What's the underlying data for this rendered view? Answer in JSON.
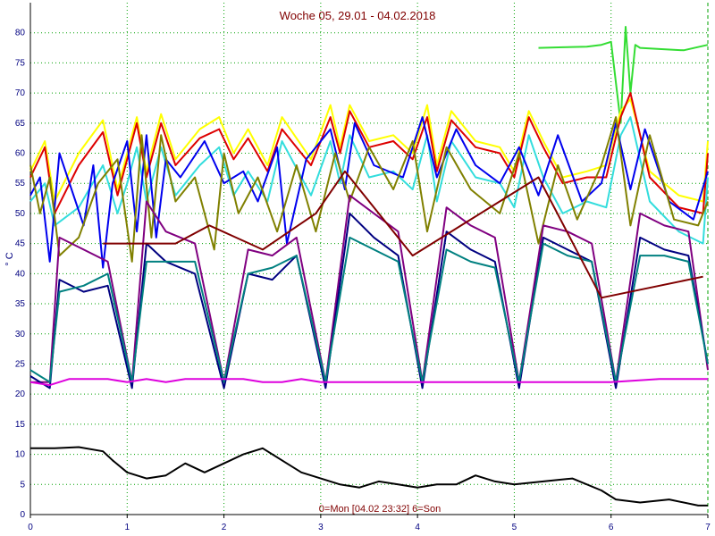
{
  "chart_data": {
    "type": "line",
    "title": "Woche 05, 29.01 - 04.02.2018",
    "xlabel": "0=Mon [04.02 23:32] 6=Son",
    "ylabel": "° C",
    "xlim": [
      0,
      7
    ],
    "ylim": [
      0,
      85
    ],
    "xticks": [
      0,
      1,
      2,
      3,
      4,
      5,
      6,
      7
    ],
    "yticks": [
      0,
      5,
      10,
      15,
      20,
      25,
      30,
      35,
      40,
      45,
      50,
      55,
      60,
      65,
      70,
      75,
      80
    ],
    "grid": true,
    "series": [
      {
        "color": "#33dd33",
        "x": [
          5.25,
          5.5,
          5.75,
          5.9,
          6.0,
          6.1,
          6.15,
          6.2,
          6.25,
          6.3,
          6.5,
          6.75,
          7.0
        ],
        "y": [
          77.5,
          77.6,
          77.7,
          78.0,
          78.5,
          65.0,
          81.0,
          70.0,
          78.0,
          77.5,
          77.3,
          77.1,
          78.0
        ]
      },
      {
        "color": "#ffff00",
        "x": [
          0,
          0.15,
          0.25,
          0.5,
          0.75,
          0.9,
          1.0,
          1.1,
          1.2,
          1.35,
          1.5,
          1.75,
          1.95,
          2.1,
          2.25,
          2.45,
          2.6,
          2.9,
          3.1,
          3.2,
          3.3,
          3.5,
          3.75,
          3.95,
          4.1,
          4.2,
          4.35,
          4.6,
          4.85,
          5.0,
          5.15,
          5.3,
          5.5,
          5.75,
          5.95,
          6.1,
          6.2,
          6.4,
          6.7,
          6.95,
          7.0
        ],
        "y": [
          57,
          62,
          52,
          60,
          65.5,
          54,
          60,
          66,
          57,
          66.5,
          59,
          64,
          66,
          60,
          64,
          58,
          66,
          59,
          68,
          61,
          68,
          62,
          63,
          60,
          68,
          58,
          67,
          62,
          61,
          57,
          67,
          62,
          56,
          57,
          58,
          67,
          69,
          57,
          53,
          52,
          62
        ]
      },
      {
        "color": "#dd0000",
        "x": [
          0,
          0.15,
          0.25,
          0.5,
          0.75,
          0.9,
          1.0,
          1.1,
          1.2,
          1.35,
          1.5,
          1.75,
          1.95,
          2.1,
          2.25,
          2.45,
          2.6,
          2.9,
          3.1,
          3.2,
          3.3,
          3.5,
          3.75,
          3.95,
          4.1,
          4.2,
          4.35,
          4.6,
          4.85,
          5.0,
          5.15,
          5.3,
          5.5,
          5.75,
          5.95,
          6.1,
          6.2,
          6.4,
          6.7,
          6.95,
          7.0
        ],
        "y": [
          56,
          61,
          50,
          58,
          63.5,
          53,
          59,
          65,
          56,
          65,
          58,
          62.5,
          64,
          59,
          62.5,
          57,
          64,
          58,
          66,
          60,
          67,
          61,
          62,
          59,
          66,
          57,
          65.5,
          61,
          60,
          56,
          66,
          61,
          55,
          56,
          56,
          66,
          70,
          56,
          51,
          50,
          60
        ]
      },
      {
        "color": "#33dddd",
        "x": [
          0,
          0.15,
          0.25,
          0.5,
          0.75,
          0.9,
          1.0,
          1.1,
          1.2,
          1.35,
          1.5,
          1.75,
          1.95,
          2.1,
          2.25,
          2.45,
          2.6,
          2.9,
          3.1,
          3.2,
          3.3,
          3.5,
          3.75,
          3.95,
          4.1,
          4.2,
          4.35,
          4.6,
          4.85,
          5.0,
          5.15,
          5.3,
          5.5,
          5.75,
          5.95,
          6.1,
          6.2,
          6.4,
          6.7,
          6.95,
          7.0
        ],
        "y": [
          52,
          55,
          48,
          51,
          58,
          50,
          55,
          61,
          52,
          61,
          53,
          58,
          61,
          53,
          57,
          52,
          62,
          53,
          62,
          55,
          63,
          56,
          57,
          54,
          63,
          52,
          62,
          56,
          55,
          51,
          63,
          56,
          50,
          52,
          51,
          63,
          66,
          52,
          47,
          45,
          56
        ]
      },
      {
        "color": "#0000ee",
        "x": [
          0,
          0.1,
          0.2,
          0.3,
          0.55,
          0.65,
          0.75,
          0.85,
          1.0,
          1.1,
          1.2,
          1.3,
          1.4,
          1.55,
          1.8,
          2.0,
          2.2,
          2.35,
          2.55,
          2.65,
          2.85,
          3.1,
          3.25,
          3.35,
          3.55,
          3.85,
          4.05,
          4.2,
          4.4,
          4.6,
          4.85,
          5.05,
          5.25,
          5.45,
          5.7,
          5.9,
          6.05,
          6.2,
          6.35,
          6.6,
          6.85,
          7.0
        ],
        "y": [
          53,
          56,
          42,
          60,
          48,
          58,
          41,
          55,
          62,
          47,
          63,
          46,
          59,
          56,
          62,
          55,
          57,
          52,
          61,
          45,
          59,
          64,
          54,
          65,
          58,
          56,
          66,
          56,
          64,
          58,
          55,
          61,
          53,
          63,
          52,
          55,
          65,
          54,
          64,
          52,
          49,
          57
        ]
      },
      {
        "color": "#808000",
        "x": [
          0,
          0.1,
          0.2,
          0.3,
          0.5,
          0.7,
          0.9,
          1.05,
          1.15,
          1.25,
          1.35,
          1.5,
          1.7,
          1.9,
          2.0,
          2.15,
          2.35,
          2.55,
          2.75,
          2.95,
          3.15,
          3.3,
          3.5,
          3.75,
          3.95,
          4.1,
          4.3,
          4.55,
          4.85,
          5.05,
          5.25,
          5.45,
          5.65,
          5.9,
          6.05,
          6.2,
          6.4,
          6.65,
          6.9,
          7.0
        ],
        "y": [
          58,
          50,
          56,
          43,
          46,
          55,
          59,
          42,
          63,
          46,
          63,
          52,
          56,
          44,
          60,
          50,
          56,
          47,
          58,
          47,
          60,
          52,
          61,
          54,
          62,
          47,
          61,
          54,
          50,
          60,
          45,
          58,
          49,
          58,
          66,
          48,
          63,
          49,
          48,
          52
        ]
      },
      {
        "color": "#800080",
        "x": [
          0,
          0.1,
          0.2,
          0.3,
          0.55,
          0.8,
          1.05,
          1.2,
          1.4,
          1.7,
          2.0,
          2.25,
          2.5,
          2.75,
          3.05,
          3.3,
          3.55,
          3.8,
          4.05,
          4.3,
          4.55,
          4.8,
          5.05,
          5.3,
          5.55,
          5.8,
          6.05,
          6.3,
          6.55,
          6.8,
          7.0
        ],
        "y": [
          22,
          22,
          22,
          46,
          44,
          42,
          22,
          52,
          47,
          45,
          22,
          44,
          43,
          46,
          22,
          53,
          50,
          47,
          22,
          51,
          48,
          46,
          22,
          48,
          47,
          45,
          22,
          50,
          48,
          47,
          24
        ]
      },
      {
        "color": "#000080",
        "x": [
          0,
          0.1,
          0.2,
          0.3,
          0.55,
          0.8,
          1.05,
          1.2,
          1.4,
          1.7,
          2.0,
          2.25,
          2.5,
          2.75,
          3.05,
          3.3,
          3.55,
          3.8,
          4.05,
          4.3,
          4.55,
          4.8,
          5.05,
          5.3,
          5.55,
          5.8,
          6.05,
          6.3,
          6.55,
          6.8,
          7.0
        ],
        "y": [
          23,
          22,
          21,
          39,
          37,
          38,
          21,
          45,
          42,
          40,
          21,
          40,
          39,
          43,
          21,
          50,
          46,
          43,
          21,
          47,
          44,
          42,
          21,
          46,
          44,
          42,
          21,
          46,
          44,
          43,
          25
        ]
      },
      {
        "color": "#008080",
        "x": [
          0,
          0.1,
          0.2,
          0.3,
          0.55,
          0.8,
          1.05,
          1.2,
          1.4,
          1.7,
          2.0,
          2.25,
          2.5,
          2.75,
          3.05,
          3.3,
          3.55,
          3.8,
          4.05,
          4.3,
          4.55,
          4.8,
          5.05,
          5.3,
          5.55,
          5.8,
          6.05,
          6.3,
          6.55,
          6.8,
          7.0
        ],
        "y": [
          24,
          23,
          22,
          37,
          38,
          40,
          22,
          42,
          42,
          42,
          22,
          40,
          41,
          43,
          22,
          46,
          44,
          42,
          22,
          44,
          42,
          41,
          22,
          45,
          43,
          42,
          22,
          43,
          43,
          42,
          25
        ]
      },
      {
        "color": "#800000",
        "x": [
          0.75,
          1.1,
          1.5,
          1.85,
          2.4,
          2.95,
          3.25,
          3.95,
          5.25,
          5.9,
          6.95
        ],
        "y": [
          45,
          45,
          45,
          48,
          44,
          50,
          57,
          43,
          56,
          36,
          39.5
        ]
      },
      {
        "color": "#dd00dd",
        "x": [
          0,
          0.2,
          0.4,
          0.6,
          0.8,
          1.0,
          1.2,
          1.4,
          1.6,
          1.8,
          2.0,
          2.2,
          2.4,
          2.6,
          2.8,
          3.0,
          3.5,
          4.0,
          4.5,
          5.0,
          5.5,
          6.0,
          6.5,
          7.0
        ],
        "y": [
          22,
          21.5,
          22.5,
          22.5,
          22.5,
          22,
          22.5,
          22,
          22.5,
          22.5,
          22.5,
          22.5,
          22,
          22,
          22.5,
          22,
          22,
          22,
          22,
          22,
          22,
          22,
          22.5,
          22.5
        ]
      },
      {
        "color": "#000000",
        "x": [
          0,
          0.25,
          0.5,
          0.75,
          0.85,
          1.0,
          1.2,
          1.4,
          1.6,
          1.8,
          2.0,
          2.2,
          2.4,
          2.6,
          2.8,
          3.0,
          3.2,
          3.4,
          3.6,
          3.8,
          4.0,
          4.2,
          4.4,
          4.6,
          4.8,
          5.0,
          5.3,
          5.6,
          5.9,
          6.05,
          6.3,
          6.6,
          6.9,
          7.0
        ],
        "y": [
          11,
          11,
          11.2,
          10.5,
          9,
          7,
          6,
          6.5,
          8.5,
          7,
          8.5,
          10,
          11,
          9,
          7,
          6,
          5,
          4.5,
          5.5,
          5,
          4.5,
          5,
          5,
          6.5,
          5.5,
          5,
          5.5,
          6,
          4,
          2.5,
          2,
          2.5,
          1.5,
          1.5
        ]
      }
    ]
  }
}
